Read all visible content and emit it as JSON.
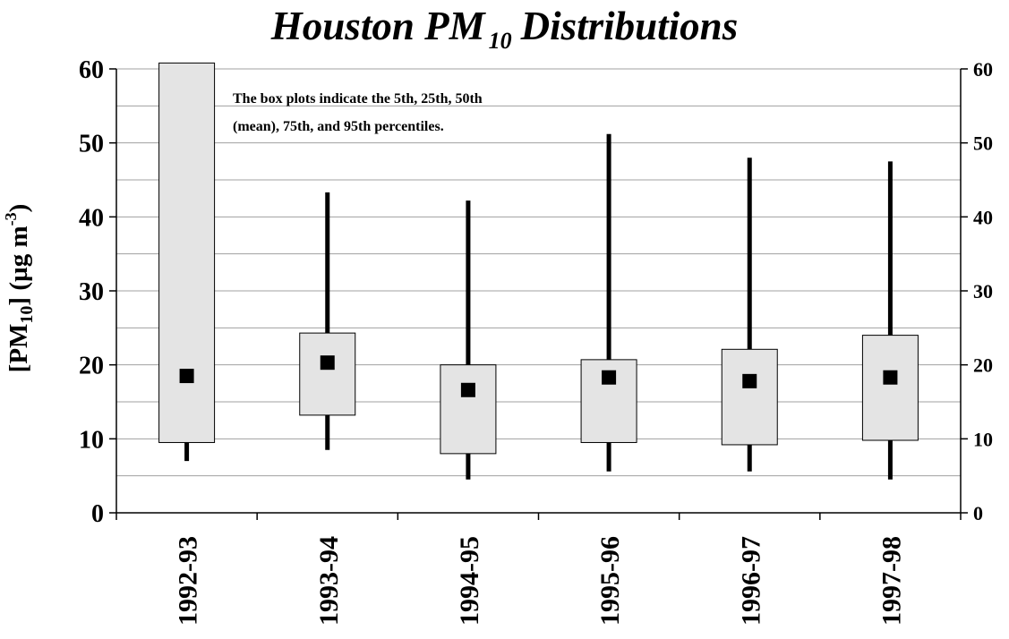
{
  "title": {
    "main": "Houston PM",
    "subscript": "10",
    "suffix": "Distributions"
  },
  "chart_data": {
    "type": "boxplot",
    "title": "Houston PM 10 Distributions",
    "ylabel": {
      "prefix": "[PM",
      "sub": "10",
      "mid": "] (",
      "mu": "µ",
      "unit": "g m",
      "sup": "-3",
      "suffix": ")"
    },
    "ylim": [
      0,
      60
    ],
    "yticks": [
      "0",
      "10",
      "20",
      "30",
      "40",
      "50",
      "60"
    ],
    "right_yticks": [
      "0",
      "10",
      "20",
      "30",
      "40",
      "50",
      "60"
    ],
    "grid": true,
    "annotation": [
      "The box plots indicate the 5th, 25th, 50th",
      "(mean), 75th, and 95th percentiles."
    ],
    "categories": [
      "1992-93",
      "1993-94",
      "1994-95",
      "1995-96",
      "1996-97",
      "1997-98"
    ],
    "series": [
      {
        "category": "1992-93",
        "p5": 7.0,
        "p25": 9.5,
        "mean": 18.5,
        "p75": 60.8,
        "p95": 60.8
      },
      {
        "category": "1993-94",
        "p5": 8.5,
        "p25": 13.2,
        "mean": 20.3,
        "p75": 24.3,
        "p95": 43.3
      },
      {
        "category": "1994-95",
        "p5": 4.5,
        "p25": 8.0,
        "mean": 16.6,
        "p75": 20.0,
        "p95": 42.2
      },
      {
        "category": "1995-96",
        "p5": 5.6,
        "p25": 9.5,
        "mean": 18.3,
        "p75": 20.7,
        "p95": 51.2
      },
      {
        "category": "1996-97",
        "p5": 5.6,
        "p25": 9.2,
        "mean": 17.8,
        "p75": 22.1,
        "p95": 48.0
      },
      {
        "category": "1997-98",
        "p5": 4.5,
        "p25": 9.8,
        "mean": 18.3,
        "p75": 24.0,
        "p95": 47.5
      }
    ],
    "colors": {
      "box_fill": "#e4e4e4",
      "whisker": "#000000",
      "marker": "#000000",
      "grid": "#a0a0a0"
    }
  }
}
